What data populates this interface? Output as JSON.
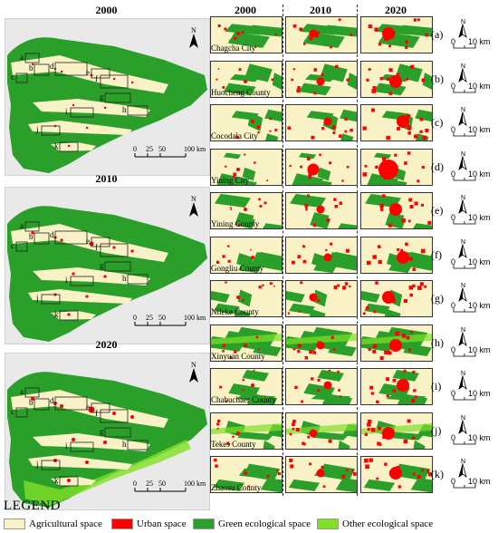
{
  "colors": {
    "agricultural": "#f8f2c6",
    "urban": "#ff0000",
    "green": "#2aa02a",
    "other": "#7fe026",
    "background": "#e9e9e9"
  },
  "left_maps": [
    {
      "year": "2000"
    },
    {
      "year": "2010"
    },
    {
      "year": "2020"
    }
  ],
  "map_scale": {
    "ticks": [
      "0",
      "25",
      "50",
      "100 km"
    ]
  },
  "map_box_labels": [
    "a",
    "b",
    "c",
    "d",
    "e",
    "f",
    "g",
    "h",
    "i",
    "j",
    "k"
  ],
  "north_label": "N",
  "columns": [
    "2000",
    "2010",
    "2020"
  ],
  "rows": [
    {
      "letter": "(a)",
      "label": "Chagcha City"
    },
    {
      "letter": "(b)",
      "label": "Huocheng County"
    },
    {
      "letter": "(c)",
      "label": "Cocodala City"
    },
    {
      "letter": "(d)",
      "label": "Yining City"
    },
    {
      "letter": "(e)",
      "label": "Yining County"
    },
    {
      "letter": "(f)",
      "label": "Gongliu County"
    },
    {
      "letter": "(g)",
      "label": "Nileke County"
    },
    {
      "letter": "(h)",
      "label": "Xinyuan County"
    },
    {
      "letter": "(i)",
      "label": "Chabuchaer County"
    },
    {
      "letter": "(j)",
      "label": "Tekes County"
    },
    {
      "letter": "(k)",
      "label": "Zhaosu County"
    }
  ],
  "row_scale": {
    "zero": "0",
    "ten": "10 km",
    "north": "N"
  },
  "legend": {
    "title": "LEGEND",
    "items": [
      {
        "label": "Agricultural space",
        "color": "#f8f2c6"
      },
      {
        "label": "Urban space",
        "color": "#ff0000"
      },
      {
        "label": "Green ecological space",
        "color": "#2aa02a"
      },
      {
        "label": "Other ecological space",
        "color": "#7fe026"
      }
    ]
  }
}
